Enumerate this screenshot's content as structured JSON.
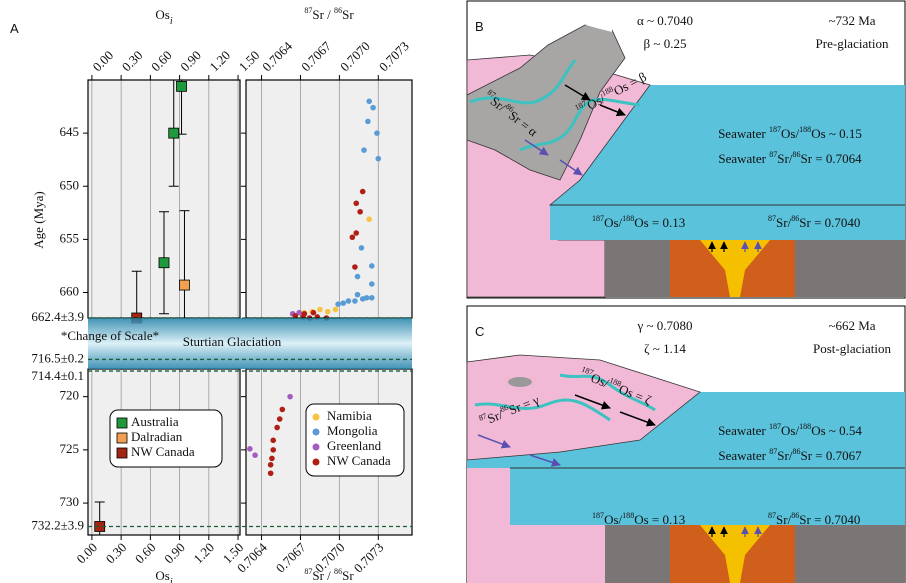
{
  "panel_labels": {
    "A": "A",
    "B": "B",
    "C": "C"
  },
  "age_axis": {
    "label": "Age (Mya)",
    "segments": [
      {
        "ylim": [
          640,
          662.4
        ],
        "yticks": [
          645,
          650,
          655,
          660
        ]
      },
      {
        "ylim": [
          717.4,
          733
        ],
        "yticks": [
          720,
          725,
          730
        ]
      }
    ],
    "markers": [
      {
        "value": 662.4,
        "label": "662.4±3.9"
      },
      {
        "value": 716.5,
        "label": "716.5±0.2"
      },
      {
        "value": 714.4,
        "label": "714.4±0.1"
      },
      {
        "value": 732.2,
        "label": "732.2±3.9"
      }
    ],
    "glaciation": "Sturtian Glaciation",
    "scale_note": "*Change of Scale*"
  },
  "chart_data": [
    {
      "type": "scatter",
      "x_label": "Os",
      "x_label_subscript": "i",
      "marker": "square",
      "grid": true,
      "xlim": [
        -0.04,
        1.52
      ],
      "xticks": [
        {
          "value": 0,
          "label": "0.00"
        },
        {
          "value": 0.3,
          "label": "0.30"
        },
        {
          "value": 0.6,
          "label": "0.60"
        },
        {
          "value": 0.9,
          "label": "0.90"
        },
        {
          "value": 1.2,
          "label": "1.20"
        },
        {
          "value": 1.5,
          "label": "1.50"
        }
      ],
      "series": [
        {
          "name": "Australia",
          "color": "#1e9a3c",
          "x": [
            0.92,
            0.84,
            0.74
          ],
          "values": [
            640.6,
            645,
            657.2
          ],
          "yerr": [
            4.5,
            5,
            4.8
          ]
        },
        {
          "name": "Dalradian",
          "color": "#f0a050",
          "x": [
            0.95
          ],
          "values": [
            659.3
          ],
          "yerr": [
            7
          ]
        },
        {
          "name": "NW Canada",
          "color": "#a32412",
          "x": [
            0.46,
            0.08
          ],
          "values": [
            662.4,
            732.2
          ],
          "yerr": [
            4.4,
            2.3
          ]
        }
      ]
    },
    {
      "type": "scatter",
      "x_label": "87Sr / 86Sr",
      "marker": "circle",
      "grid": true,
      "xlim": [
        0.70628,
        0.70756
      ],
      "xticks": [
        0.7064,
        {
          "value": 0.7067,
          "label": "0.7067"
        },
        {
          "value": 0.707,
          "label": "0.7070"
        },
        0.7073
      ],
      "series": [
        {
          "name": "Namibia",
          "color": "#f5c242",
          "x": [
            0.70723,
            0.70691,
            0.70685,
            0.70679,
            0.70673,
            0.70697
          ],
          "values": [
            653.1,
            661.8,
            661.6,
            661.8,
            661.9,
            661.6
          ]
        },
        {
          "name": "Mongolia",
          "color": "#5b9bd5",
          "x": [
            0.70723,
            0.70726,
            0.70729,
            0.7073,
            0.70722,
            0.70719,
            0.70725,
            0.70725,
            0.70721,
            0.70725,
            0.70718,
            0.70712,
            0.70707,
            0.70703,
            0.70699,
            0.70714,
            0.70717,
            0.70714
          ],
          "values": [
            642.0,
            642.6,
            645.0,
            647.4,
            643.9,
            646.6,
            657.5,
            659.2,
            660.5,
            660.5,
            660.6,
            660.8,
            660.8,
            661.0,
            661.1,
            660.2,
            655.8,
            658.5
          ]
        },
        {
          "name": "Greenland",
          "color": "#a45cc0",
          "x": [
            0.70664,
            0.70669,
            0.70631,
            0.70635,
            0.70662
          ],
          "values": [
            662.0,
            661.9,
            724.9,
            725.5,
            720.0
          ]
        },
        {
          "name": "NW Canada",
          "color": "#b01e16",
          "x": [
            0.70718,
            0.70713,
            0.70716,
            0.70713,
            0.7071,
            0.70712,
            0.70666,
            0.70672,
            0.70677,
            0.70683,
            0.7069,
            0.70673,
            0.7068,
            0.70656,
            0.70654,
            0.70652,
            0.70649,
            0.70649,
            0.70648,
            0.70647,
            0.70647
          ],
          "values": [
            650.5,
            651.6,
            652.4,
            654.4,
            654.8,
            657.6,
            662.2,
            662.3,
            662.4,
            662.3,
            662.4,
            662.0,
            661.9,
            721.2,
            722.1,
            722.9,
            724.1,
            725.0,
            725.8,
            726.4,
            727.2
          ]
        }
      ]
    }
  ],
  "panels": {
    "B": {
      "greek_1": "α ~ 0.7040",
      "greek_2": "β ~ 0.25",
      "age": "~732 Ma",
      "phase": "Pre-glaciation",
      "os_river": "187Os/188Os = β",
      "sr_river": "87Sr/86Sr = α",
      "seawater_os": "Seawater 187Os/188Os ~ 0.15",
      "seawater_sr": "Seawater 87Sr/86Sr = 0.7064",
      "vent_os": "187Os/188Os = 0.13",
      "vent_sr": "87Sr/86Sr = 0.7040"
    },
    "C": {
      "greek_1": "γ ~ 0.7080",
      "greek_2": "ζ ~ 1.14",
      "age": "~662 Ma",
      "phase": "Post-glaciation",
      "os_river": "187Os/188Os = ζ",
      "sr_river": "87Sr/86Sr = γ",
      "seawater_os": "Seawater 187Os/188Os ~ 0.54",
      "seawater_sr": "Seawater 87Sr/86Sr = 0.7067",
      "vent_os": "187Os/188Os = 0.13",
      "vent_sr": "87Sr/86Sr = 0.7040"
    }
  }
}
